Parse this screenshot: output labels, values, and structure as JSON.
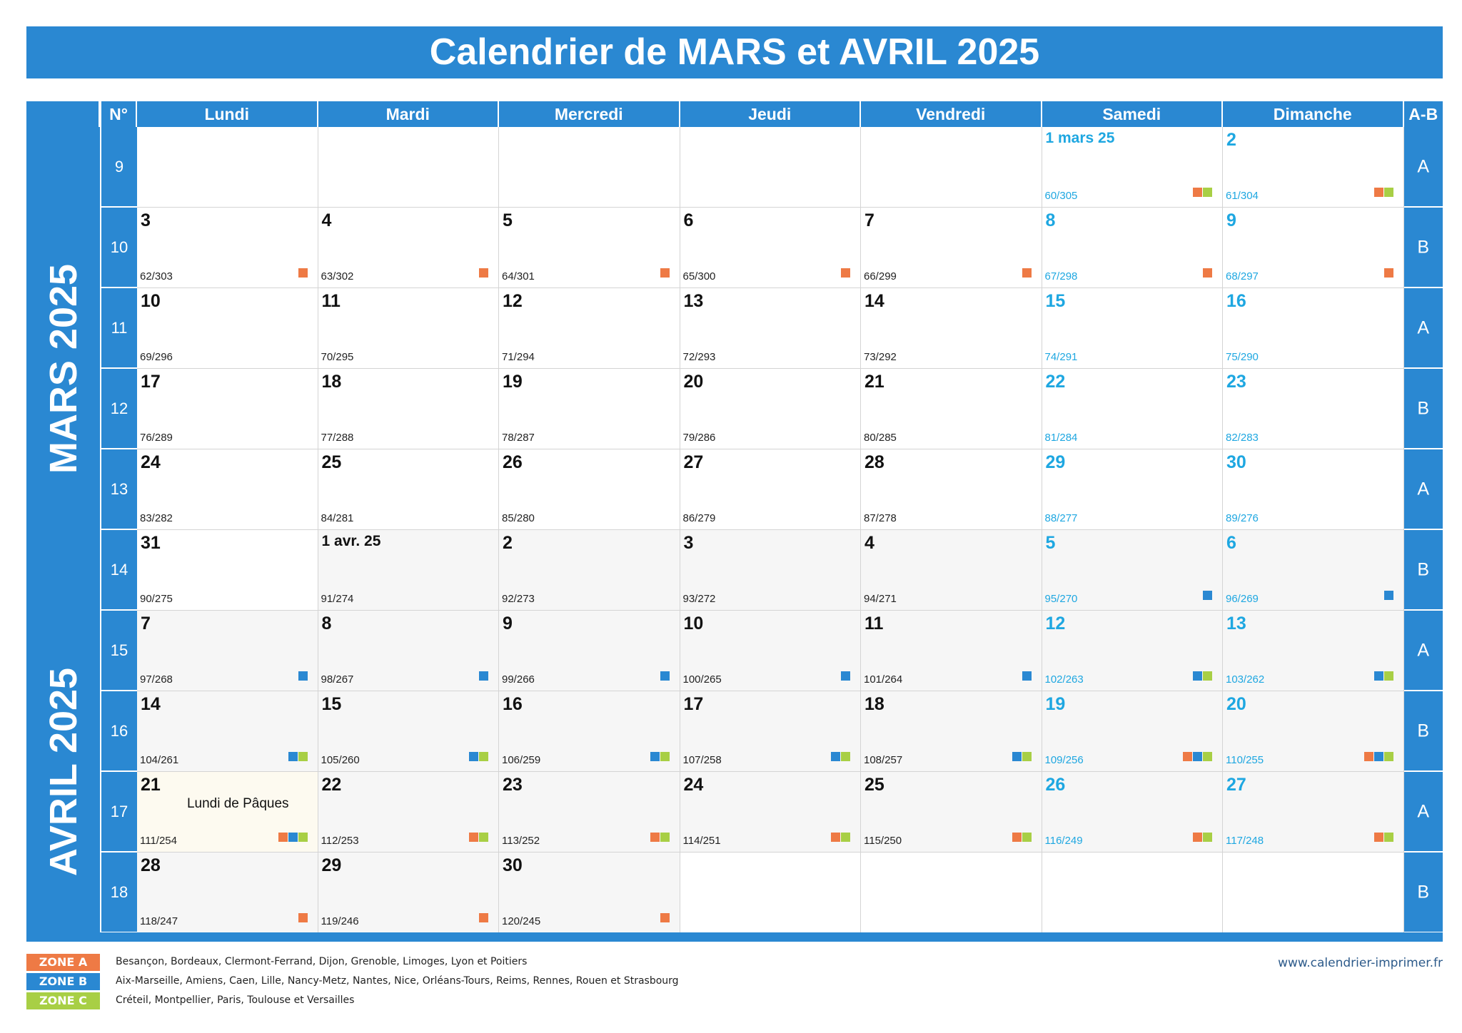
{
  "title": "Calendrier de MARS et AVRIL 2025",
  "header": {
    "num_label": "N°",
    "days": [
      "Lundi",
      "Mardi",
      "Mercredi",
      "Jeudi",
      "Vendredi",
      "Samedi",
      "Dimanche"
    ],
    "ab_label": "A-B"
  },
  "months": [
    {
      "label": "MARS 2025",
      "first_week": 0,
      "weeks": 6
    },
    {
      "label": "AVRIL 2025",
      "first_week": 6,
      "weeks": 4
    }
  ],
  "weeks": [
    {
      "num": "9",
      "ab": "A",
      "days": [
        null,
        null,
        null,
        null,
        null,
        {
          "d": "1 mars 25",
          "doy": "60/305",
          "z": [
            "A",
            "C"
          ]
        },
        {
          "d": "2",
          "doy": "61/304",
          "z": [
            "A",
            "C"
          ]
        }
      ]
    },
    {
      "num": "10",
      "ab": "B",
      "days": [
        {
          "d": "3",
          "doy": "62/303",
          "z": [
            "A"
          ]
        },
        {
          "d": "4",
          "doy": "63/302",
          "z": [
            "A"
          ]
        },
        {
          "d": "5",
          "doy": "64/301",
          "z": [
            "A"
          ]
        },
        {
          "d": "6",
          "doy": "65/300",
          "z": [
            "A"
          ]
        },
        {
          "d": "7",
          "doy": "66/299",
          "z": [
            "A"
          ]
        },
        {
          "d": "8",
          "doy": "67/298",
          "z": [
            "A"
          ]
        },
        {
          "d": "9",
          "doy": "68/297",
          "z": [
            "A"
          ]
        }
      ]
    },
    {
      "num": "11",
      "ab": "A",
      "days": [
        {
          "d": "10",
          "doy": "69/296",
          "z": []
        },
        {
          "d": "11",
          "doy": "70/295",
          "z": []
        },
        {
          "d": "12",
          "doy": "71/294",
          "z": []
        },
        {
          "d": "13",
          "doy": "72/293",
          "z": []
        },
        {
          "d": "14",
          "doy": "73/292",
          "z": []
        },
        {
          "d": "15",
          "doy": "74/291",
          "z": []
        },
        {
          "d": "16",
          "doy": "75/290",
          "z": []
        }
      ]
    },
    {
      "num": "12",
      "ab": "B",
      "days": [
        {
          "d": "17",
          "doy": "76/289",
          "z": []
        },
        {
          "d": "18",
          "doy": "77/288",
          "z": []
        },
        {
          "d": "19",
          "doy": "78/287",
          "z": []
        },
        {
          "d": "20",
          "doy": "79/286",
          "z": []
        },
        {
          "d": "21",
          "doy": "80/285",
          "z": []
        },
        {
          "d": "22",
          "doy": "81/284",
          "z": []
        },
        {
          "d": "23",
          "doy": "82/283",
          "z": []
        }
      ]
    },
    {
      "num": "13",
      "ab": "A",
      "days": [
        {
          "d": "24",
          "doy": "83/282",
          "z": []
        },
        {
          "d": "25",
          "doy": "84/281",
          "z": []
        },
        {
          "d": "26",
          "doy": "85/280",
          "z": []
        },
        {
          "d": "27",
          "doy": "86/279",
          "z": []
        },
        {
          "d": "28",
          "doy": "87/278",
          "z": []
        },
        {
          "d": "29",
          "doy": "88/277",
          "z": []
        },
        {
          "d": "30",
          "doy": "89/276",
          "z": []
        }
      ]
    },
    {
      "num": "14",
      "ab": "B",
      "days": [
        {
          "d": "31",
          "doy": "90/275",
          "z": []
        },
        {
          "d": "1 avr. 25",
          "doy": "91/274",
          "z": [],
          "apr": true
        },
        {
          "d": "2",
          "doy": "92/273",
          "z": [],
          "apr": true
        },
        {
          "d": "3",
          "doy": "93/272",
          "z": [],
          "apr": true
        },
        {
          "d": "4",
          "doy": "94/271",
          "z": [],
          "apr": true
        },
        {
          "d": "5",
          "doy": "95/270",
          "z": [
            "B"
          ],
          "apr": true
        },
        {
          "d": "6",
          "doy": "96/269",
          "z": [
            "B"
          ],
          "apr": true
        }
      ]
    },
    {
      "num": "15",
      "ab": "A",
      "days": [
        {
          "d": "7",
          "doy": "97/268",
          "z": [
            "B"
          ],
          "apr": true
        },
        {
          "d": "8",
          "doy": "98/267",
          "z": [
            "B"
          ],
          "apr": true
        },
        {
          "d": "9",
          "doy": "99/266",
          "z": [
            "B"
          ],
          "apr": true
        },
        {
          "d": "10",
          "doy": "100/265",
          "z": [
            "B"
          ],
          "apr": true
        },
        {
          "d": "11",
          "doy": "101/264",
          "z": [
            "B"
          ],
          "apr": true
        },
        {
          "d": "12",
          "doy": "102/263",
          "z": [
            "B",
            "C"
          ],
          "apr": true
        },
        {
          "d": "13",
          "doy": "103/262",
          "z": [
            "B",
            "C"
          ],
          "apr": true
        }
      ]
    },
    {
      "num": "16",
      "ab": "B",
      "days": [
        {
          "d": "14",
          "doy": "104/261",
          "z": [
            "B",
            "C"
          ],
          "apr": true
        },
        {
          "d": "15",
          "doy": "105/260",
          "z": [
            "B",
            "C"
          ],
          "apr": true
        },
        {
          "d": "16",
          "doy": "106/259",
          "z": [
            "B",
            "C"
          ],
          "apr": true
        },
        {
          "d": "17",
          "doy": "107/258",
          "z": [
            "B",
            "C"
          ],
          "apr": true
        },
        {
          "d": "18",
          "doy": "108/257",
          "z": [
            "B",
            "C"
          ],
          "apr": true
        },
        {
          "d": "19",
          "doy": "109/256",
          "z": [
            "A",
            "B",
            "C"
          ],
          "apr": true
        },
        {
          "d": "20",
          "doy": "110/255",
          "z": [
            "A",
            "B",
            "C"
          ],
          "apr": true
        }
      ]
    },
    {
      "num": "17",
      "ab": "A",
      "days": [
        {
          "d": "21",
          "doy": "111/254",
          "z": [
            "A",
            "B",
            "C"
          ],
          "apr": true,
          "holiday": "Lundi de Pâques"
        },
        {
          "d": "22",
          "doy": "112/253",
          "z": [
            "A",
            "C"
          ],
          "apr": true
        },
        {
          "d": "23",
          "doy": "113/252",
          "z": [
            "A",
            "C"
          ],
          "apr": true
        },
        {
          "d": "24",
          "doy": "114/251",
          "z": [
            "A",
            "C"
          ],
          "apr": true
        },
        {
          "d": "25",
          "doy": "115/250",
          "z": [
            "A",
            "C"
          ],
          "apr": true
        },
        {
          "d": "26",
          "doy": "116/249",
          "z": [
            "A",
            "C"
          ],
          "apr": true
        },
        {
          "d": "27",
          "doy": "117/248",
          "z": [
            "A",
            "C"
          ],
          "apr": true
        }
      ]
    },
    {
      "num": "18",
      "ab": "B",
      "days": [
        {
          "d": "28",
          "doy": "118/247",
          "z": [
            "A"
          ],
          "apr": true
        },
        {
          "d": "29",
          "doy": "119/246",
          "z": [
            "A"
          ],
          "apr": true
        },
        {
          "d": "30",
          "doy": "120/245",
          "z": [
            "A"
          ],
          "apr": true
        },
        null,
        null,
        null,
        null
      ]
    }
  ],
  "legend": [
    {
      "zone": "ZONE A",
      "color": "#ee7a45",
      "text": "Besançon, Bordeaux, Clermont-Ferrand, Dijon, Grenoble, Limoges, Lyon et Poitiers"
    },
    {
      "zone": "ZONE B",
      "color": "#2a88d2",
      "text": "Aix-Marseille, Amiens, Caen, Lille, Nancy-Metz, Nantes, Nice, Orléans-Tours, Reims, Rennes, Rouen et Strasbourg"
    },
    {
      "zone": "ZONE C",
      "color": "#a8cf45",
      "text": "Créteil, Montpellier, Paris, Toulouse et Versailles"
    }
  ],
  "website": "www.calendrier-imprimer.fr",
  "colors": {
    "primary": "#2a88d2",
    "weekend_text": "#1ea7e1"
  }
}
